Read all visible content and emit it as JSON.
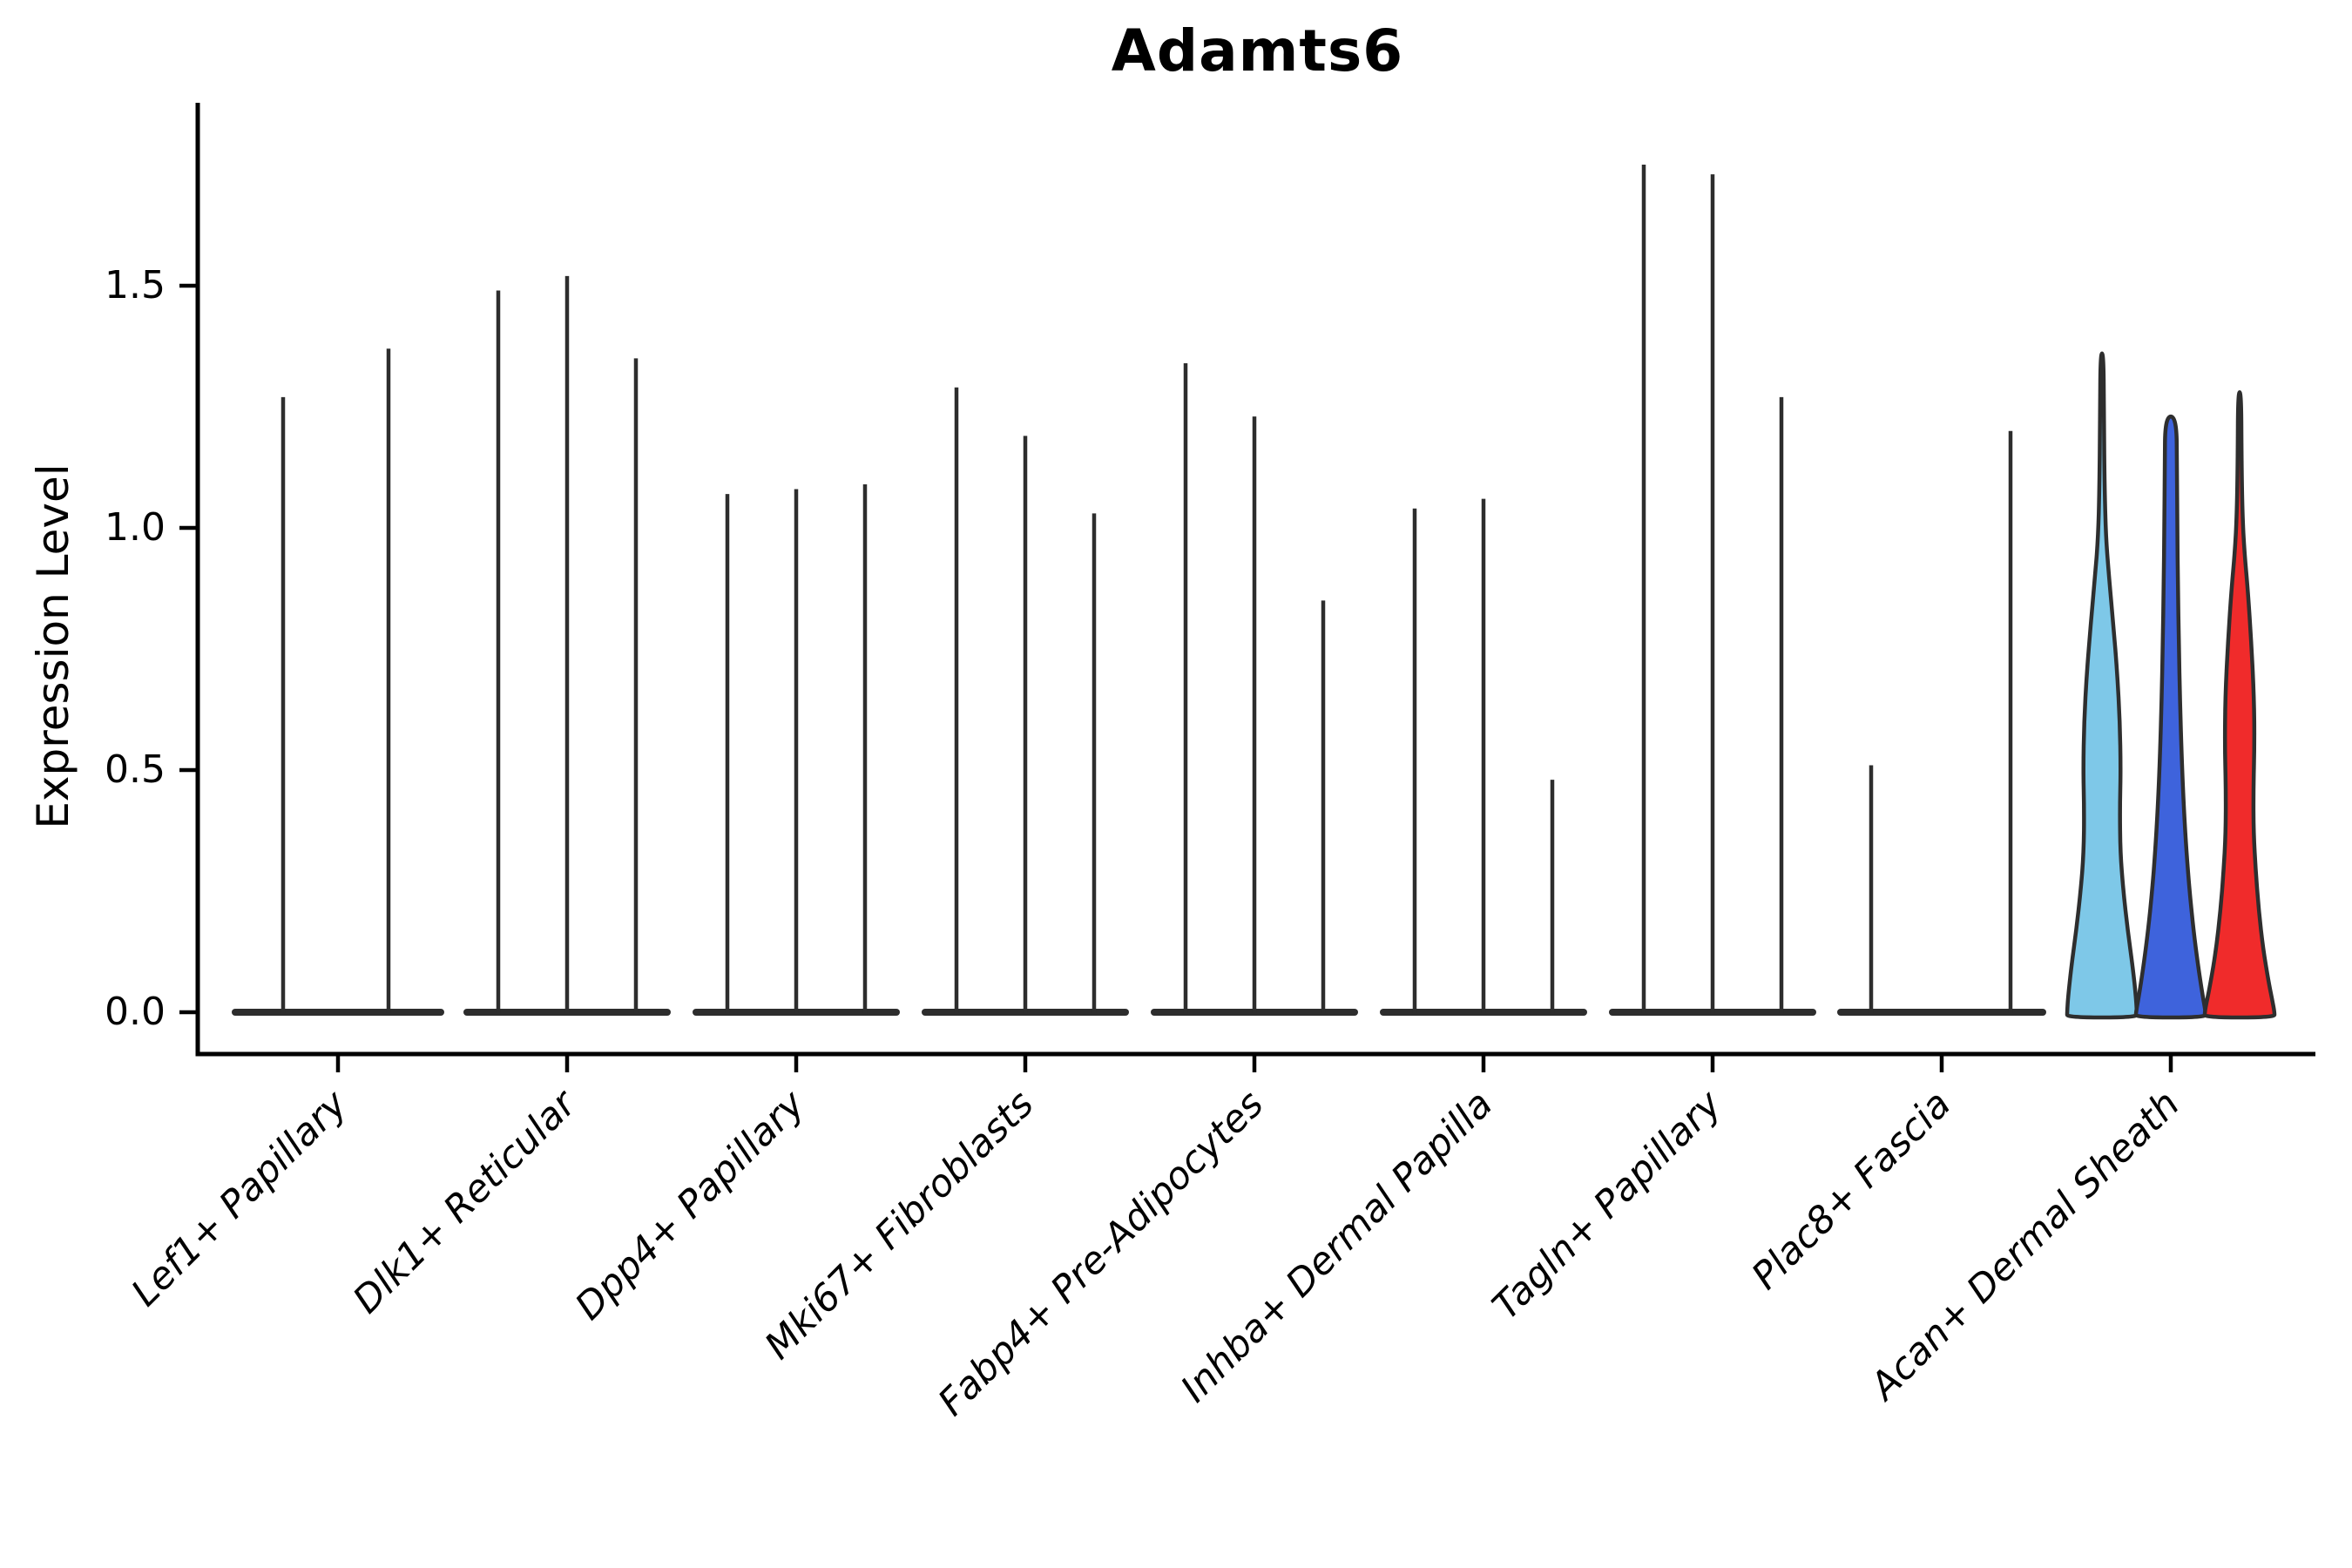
{
  "title": "Adamts6",
  "y_axis": {
    "label": "Expression Level",
    "tick_labels": [
      "0.0",
      "0.5",
      "1.0",
      "1.5"
    ],
    "tick_values": [
      0.0,
      0.5,
      1.0,
      1.5
    ]
  },
  "colors": {
    "spike": "#2d2d2d",
    "violin_outline": "#2e2e2e",
    "axis": "#000000",
    "skyblue_fill": "#7EC8E8",
    "royalblue_fill": "#3E63DC",
    "red_fill": "#F02B2B"
  },
  "chart_data": {
    "type": "violin",
    "title": "Adamts6",
    "xlabel": "",
    "ylabel": "Expression Level",
    "ylim": [
      0,
      1.88
    ],
    "y_ticks": [
      0.0,
      0.5,
      1.0,
      1.5
    ],
    "grid": false,
    "legend": null,
    "categories": [
      "Lef1+ Papillary",
      "Dlk1+ Reticular",
      "Dpp4+ Papillary",
      "Mki67+ Fibroblasts",
      "Fabp4+ Pre-Adipocytes",
      "Inhba+ Dermal Papilla",
      "Tagln+ Papillary",
      "Plac8+ Fascia",
      "Acan+ Dermal Sheath"
    ],
    "description": "Violin plot of Adamts6 expression per fibroblast cluster; most clusters show near-zero expression (thin spikes to the max value), while Acan+ Dermal Sheath shows three wide colored violins.",
    "groups": [
      {
        "category": "Lef1+ Papillary",
        "base_half_width": 122,
        "violins": [
          {
            "style": "spike",
            "offset": -63,
            "max": 1.27
          },
          {
            "style": "spike",
            "offset": 58,
            "max": 1.37
          }
        ]
      },
      {
        "category": "Dlk1+ Reticular",
        "base_half_width": 119,
        "violins": [
          {
            "style": "spike",
            "offset": -79,
            "max": 1.49
          },
          {
            "style": "spike",
            "offset": 0,
            "max": 1.52
          },
          {
            "style": "spike",
            "offset": 79,
            "max": 1.35
          }
        ]
      },
      {
        "category": "Dpp4+ Papillary",
        "base_half_width": 119,
        "violins": [
          {
            "style": "spike",
            "offset": -79,
            "max": 1.07
          },
          {
            "style": "spike",
            "offset": 0,
            "max": 1.08
          },
          {
            "style": "spike",
            "offset": 79,
            "max": 1.09
          }
        ]
      },
      {
        "category": "Mki67+ Fibroblasts",
        "base_half_width": 119,
        "violins": [
          {
            "style": "spike",
            "offset": -79,
            "max": 1.29
          },
          {
            "style": "spike",
            "offset": 0,
            "max": 1.19
          },
          {
            "style": "spike",
            "offset": 79,
            "max": 1.03
          }
        ]
      },
      {
        "category": "Fabp4+ Pre-Adipocytes",
        "base_half_width": 119,
        "violins": [
          {
            "style": "spike",
            "offset": -79,
            "max": 1.34
          },
          {
            "style": "spike",
            "offset": 0,
            "max": 1.23
          },
          {
            "style": "spike",
            "offset": 79,
            "max": 0.85
          }
        ]
      },
      {
        "category": "Inhba+ Dermal Papilla",
        "base_half_width": 119,
        "violins": [
          {
            "style": "spike",
            "offset": -79,
            "max": 1.04
          },
          {
            "style": "spike",
            "offset": 0,
            "max": 1.06
          },
          {
            "style": "spike",
            "offset": 79,
            "max": 0.48
          }
        ]
      },
      {
        "category": "Tagln+ Papillary",
        "base_half_width": 119,
        "violins": [
          {
            "style": "spike",
            "offset": -79,
            "max": 1.75
          },
          {
            "style": "spike",
            "offset": 0,
            "max": 1.73
          },
          {
            "style": "spike",
            "offset": 79,
            "max": 1.27
          }
        ]
      },
      {
        "category": "Plac8+ Fascia",
        "base_half_width": 120,
        "violins": [
          {
            "style": "spike",
            "offset": -81,
            "max": 0.51
          },
          {
            "style": "spike",
            "offset": 79,
            "max": 1.2
          }
        ]
      },
      {
        "category": "Acan+ Dermal Sheath",
        "base_half_width": 119,
        "violins": [
          {
            "style": "shape",
            "offset": -79,
            "max": 1.36,
            "color": "#7EC8E8",
            "color_name": "skyblue",
            "profile": [
              [
                1.36,
                1.8
              ],
              [
                1.22,
                2.2
              ],
              [
                1.08,
                3.0
              ],
              [
                0.98,
                4.5
              ],
              [
                0.9,
                8.0
              ],
              [
                0.8,
                13.0
              ],
              [
                0.7,
                17.5
              ],
              [
                0.6,
                20.5
              ],
              [
                0.5,
                21.5
              ],
              [
                0.42,
                20.5
              ],
              [
                0.33,
                21.0
              ],
              [
                0.25,
                24.5
              ],
              [
                0.17,
                29.5
              ],
              [
                0.09,
                35.5
              ],
              [
                0.03,
                39.0
              ],
              [
                0.0,
                40.0
              ]
            ]
          },
          {
            "style": "shape",
            "offset": 0,
            "max": 1.23,
            "color": "#3E63DC",
            "color_name": "royalblue",
            "profile": [
              [
                1.23,
                6.5
              ],
              [
                1.12,
                7.0
              ],
              [
                1.0,
                7.5
              ],
              [
                0.88,
                8.2
              ],
              [
                0.76,
                9.2
              ],
              [
                0.64,
                10.6
              ],
              [
                0.52,
                12.6
              ],
              [
                0.42,
                15.0
              ],
              [
                0.33,
                18.0
              ],
              [
                0.25,
                21.5
              ],
              [
                0.17,
                26.0
              ],
              [
                0.1,
                31.0
              ],
              [
                0.04,
                36.0
              ],
              [
                0.0,
                40.0
              ]
            ]
          },
          {
            "style": "shape",
            "offset": 79,
            "max": 1.28,
            "color": "#F02B2B",
            "color_name": "red",
            "profile": [
              [
                1.28,
                1.8
              ],
              [
                1.14,
                2.2
              ],
              [
                1.03,
                3.2
              ],
              [
                0.95,
                5.5
              ],
              [
                0.87,
                9.5
              ],
              [
                0.76,
                13.5
              ],
              [
                0.65,
                16.5
              ],
              [
                0.55,
                17.0
              ],
              [
                0.46,
                15.8
              ],
              [
                0.37,
                16.0
              ],
              [
                0.29,
                18.5
              ],
              [
                0.21,
                22.0
              ],
              [
                0.13,
                27.0
              ],
              [
                0.06,
                33.5
              ],
              [
                0.02,
                38.0
              ],
              [
                0.0,
                40.0
              ]
            ]
          }
        ]
      }
    ]
  }
}
